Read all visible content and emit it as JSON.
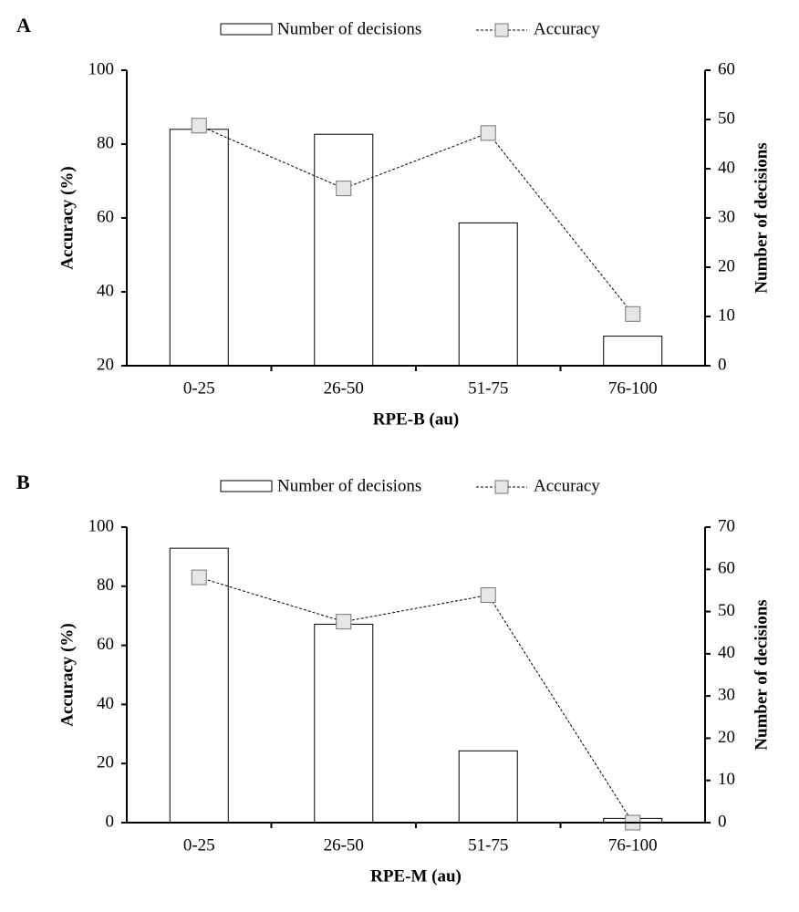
{
  "chart_data": [
    {
      "type": "bar_line",
      "panel_label": "A",
      "xlabel": "RPE-B (au)",
      "ylabel": "Accuracy (%)",
      "y2label": "Number of decisions",
      "categories": [
        "0-25",
        "26-50",
        "51-75",
        "76-100"
      ],
      "series": [
        {
          "name": "Number of decisions",
          "color": "#ffffff",
          "axis": "y2",
          "values": [
            48,
            47,
            29,
            6
          ]
        },
        {
          "name": "Accuracy",
          "color": "#e6e6e6",
          "axis": "y",
          "values": [
            85,
            68,
            83,
            34
          ]
        }
      ],
      "ylim": [
        20,
        100
      ],
      "yticks": [
        20,
        40,
        60,
        80,
        100
      ],
      "y2lim": [
        0,
        60
      ],
      "y2ticks": [
        0,
        10,
        20,
        30,
        40,
        50,
        60
      ]
    },
    {
      "type": "bar_line",
      "panel_label": "B",
      "xlabel": "RPE-M (au)",
      "ylabel": "Accuracy (%)",
      "y2label": "Number of decisions",
      "categories": [
        "0-25",
        "26-50",
        "51-75",
        "76-100"
      ],
      "series": [
        {
          "name": "Number of decisions",
          "color": "#ffffff",
          "axis": "y2",
          "values": [
            65,
            47,
            17,
            1
          ]
        },
        {
          "name": "Accuracy",
          "color": "#e6e6e6",
          "axis": "y",
          "values": [
            83,
            68,
            77,
            0
          ]
        }
      ],
      "ylim": [
        0,
        100
      ],
      "yticks": [
        0,
        20,
        40,
        60,
        80,
        100
      ],
      "y2lim": [
        0,
        70
      ],
      "y2ticks": [
        0,
        10,
        20,
        30,
        40,
        50,
        60,
        70
      ]
    }
  ]
}
